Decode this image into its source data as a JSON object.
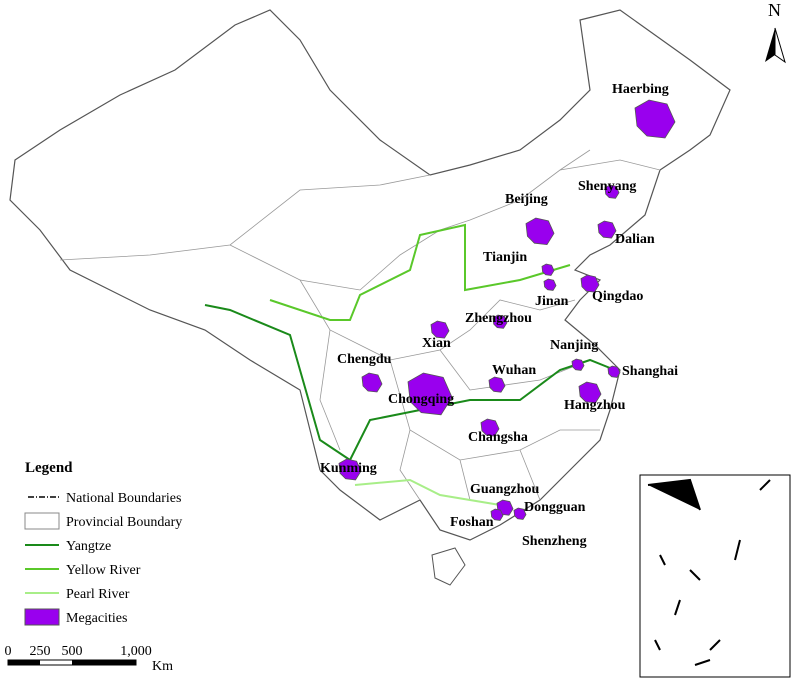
{
  "north": "N",
  "legend": {
    "title": "Legend",
    "items": [
      "National Boundaries",
      "Provincial Boundary",
      "Yangtze",
      "Yellow River",
      "Pearl River",
      "Megacities"
    ]
  },
  "cities": [
    "Haerbing",
    "Shenyang",
    "Beijing",
    "Dalian",
    "Tianjin",
    "Qingdao",
    "Jinan",
    "Zhengzhou",
    "Xian",
    "Nanjing",
    "Chengdu",
    "Wuhan",
    "Shanghai",
    "Chongqing",
    "Hangzhou",
    "Changsha",
    "Kunming",
    "Guangzhou",
    "Dongguan",
    "Foshan",
    "Shenzheng"
  ],
  "scale": {
    "ticks": [
      "0",
      "250",
      "500",
      "1,000"
    ],
    "unit": "Km"
  }
}
